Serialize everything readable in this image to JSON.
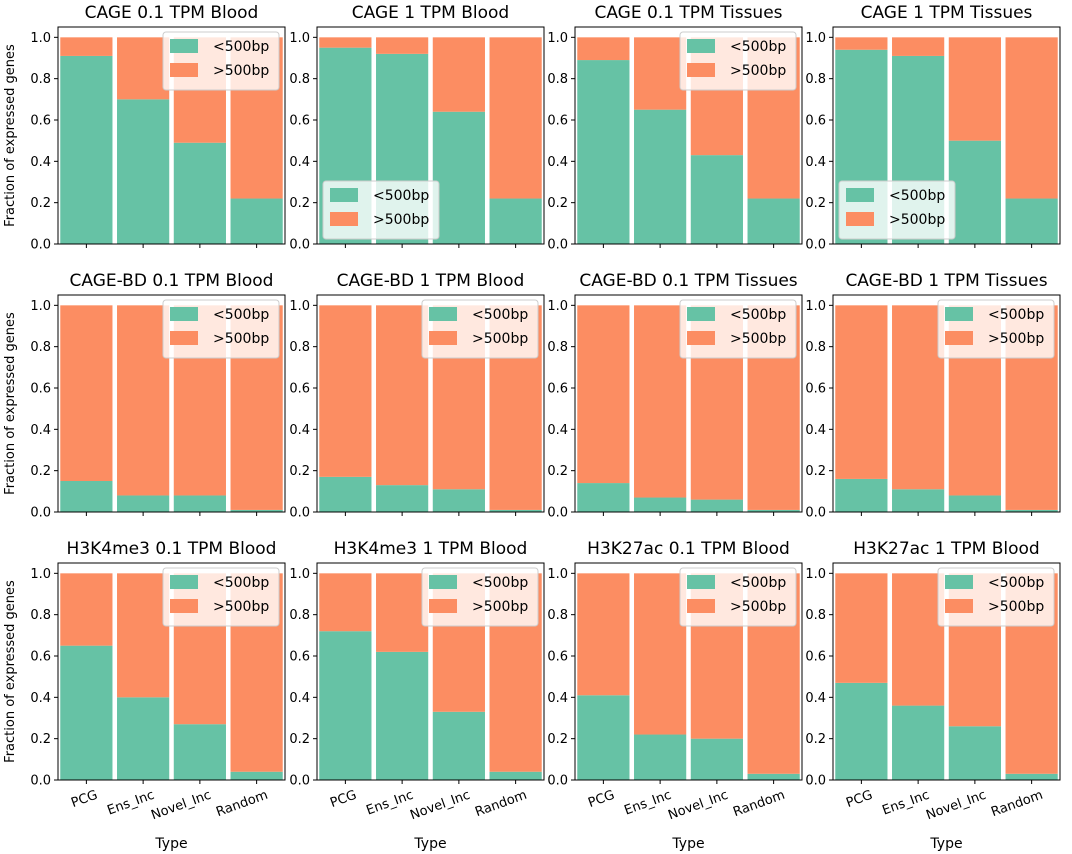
{
  "colors": {
    "short": "#66c2a5",
    "long": "#fc8d62",
    "axis": "#000000",
    "legend_edge": "#cccccc"
  },
  "figure": {
    "ylabel": "Fraction of expressed genes",
    "xlabel": "Type",
    "legend": [
      "<500bp",
      ">500bp"
    ],
    "yticks": [
      "0.0",
      "0.2",
      "0.4",
      "0.6",
      "0.8",
      "1.0"
    ]
  },
  "chart_data": [
    {
      "type": "bar",
      "title": "CAGE 0.1 TPM Blood",
      "categories": [
        "PCG",
        "Ens_Inc",
        "Novel_Inc",
        "Random"
      ],
      "series": [
        {
          "name": "<500bp",
          "values": [
            0.91,
            0.7,
            0.49,
            0.22
          ]
        },
        {
          "name": ">500bp",
          "values": [
            0.09,
            0.3,
            0.51,
            0.78
          ]
        }
      ],
      "xlabel": "",
      "ylabel": "Fraction of expressed genes",
      "ylim": [
        0,
        1.05
      ],
      "legend_position": "top-right"
    },
    {
      "type": "bar",
      "title": "CAGE 1 TPM Blood",
      "categories": [
        "PCG",
        "Ens_Inc",
        "Novel_Inc",
        "Random"
      ],
      "series": [
        {
          "name": "<500bp",
          "values": [
            0.95,
            0.92,
            0.64,
            0.22
          ]
        },
        {
          "name": ">500bp",
          "values": [
            0.05,
            0.08,
            0.36,
            0.78
          ]
        }
      ],
      "xlabel": "",
      "ylabel": "",
      "ylim": [
        0,
        1.05
      ],
      "legend_position": "bottom-left"
    },
    {
      "type": "bar",
      "title": "CAGE 0.1 TPM Tissues",
      "categories": [
        "PCG",
        "Ens_Inc",
        "Novel_Inc",
        "Random"
      ],
      "series": [
        {
          "name": "<500bp",
          "values": [
            0.89,
            0.65,
            0.43,
            0.22
          ]
        },
        {
          "name": ">500bp",
          "values": [
            0.11,
            0.35,
            0.57,
            0.78
          ]
        }
      ],
      "xlabel": "",
      "ylabel": "",
      "ylim": [
        0,
        1.05
      ],
      "legend_position": "top-right"
    },
    {
      "type": "bar",
      "title": "CAGE 1 TPM Tissues",
      "categories": [
        "PCG",
        "Ens_Inc",
        "Novel_Inc",
        "Random"
      ],
      "series": [
        {
          "name": "<500bp",
          "values": [
            0.94,
            0.91,
            0.5,
            0.22
          ]
        },
        {
          "name": ">500bp",
          "values": [
            0.06,
            0.09,
            0.5,
            0.78
          ]
        }
      ],
      "xlabel": "",
      "ylabel": "",
      "ylim": [
        0,
        1.05
      ],
      "legend_position": "bottom-left"
    },
    {
      "type": "bar",
      "title": "CAGE-BD 0.1 TPM Blood",
      "categories": [
        "PCG",
        "Ens_Inc",
        "Novel_Inc",
        "Random"
      ],
      "series": [
        {
          "name": "<500bp",
          "values": [
            0.15,
            0.08,
            0.08,
            0.01
          ]
        },
        {
          "name": ">500bp",
          "values": [
            0.85,
            0.92,
            0.92,
            0.99
          ]
        }
      ],
      "xlabel": "",
      "ylabel": "Fraction of expressed genes",
      "ylim": [
        0,
        1.05
      ],
      "legend_position": "top-right"
    },
    {
      "type": "bar",
      "title": "CAGE-BD 1 TPM Blood",
      "categories": [
        "PCG",
        "Ens_Inc",
        "Novel_Inc",
        "Random"
      ],
      "series": [
        {
          "name": "<500bp",
          "values": [
            0.17,
            0.13,
            0.11,
            0.01
          ]
        },
        {
          "name": ">500bp",
          "values": [
            0.83,
            0.87,
            0.89,
            0.99
          ]
        }
      ],
      "xlabel": "",
      "ylabel": "",
      "ylim": [
        0,
        1.05
      ],
      "legend_position": "top-right"
    },
    {
      "type": "bar",
      "title": "CAGE-BD 0.1 TPM Tissues",
      "categories": [
        "PCG",
        "Ens_Inc",
        "Novel_Inc",
        "Random"
      ],
      "series": [
        {
          "name": "<500bp",
          "values": [
            0.14,
            0.07,
            0.06,
            0.01
          ]
        },
        {
          "name": ">500bp",
          "values": [
            0.86,
            0.93,
            0.94,
            0.99
          ]
        }
      ],
      "xlabel": "",
      "ylabel": "",
      "ylim": [
        0,
        1.05
      ],
      "legend_position": "top-right"
    },
    {
      "type": "bar",
      "title": "CAGE-BD 1 TPM Tissues",
      "categories": [
        "PCG",
        "Ens_Inc",
        "Novel_Inc",
        "Random"
      ],
      "series": [
        {
          "name": "<500bp",
          "values": [
            0.16,
            0.11,
            0.08,
            0.01
          ]
        },
        {
          "name": ">500bp",
          "values": [
            0.84,
            0.89,
            0.92,
            0.99
          ]
        }
      ],
      "xlabel": "",
      "ylabel": "",
      "ylim": [
        0,
        1.05
      ],
      "legend_position": "top-right"
    },
    {
      "type": "bar",
      "title": "H3K4me3 0.1 TPM Blood",
      "categories": [
        "PCG",
        "Ens_Inc",
        "Novel_Inc",
        "Random"
      ],
      "series": [
        {
          "name": "<500bp",
          "values": [
            0.65,
            0.4,
            0.27,
            0.04
          ]
        },
        {
          "name": ">500bp",
          "values": [
            0.35,
            0.6,
            0.73,
            0.96
          ]
        }
      ],
      "xlabel": "Type",
      "ylabel": "Fraction of expressed genes",
      "ylim": [
        0,
        1.05
      ],
      "legend_position": "top-right"
    },
    {
      "type": "bar",
      "title": "H3K4me3 1 TPM Blood",
      "categories": [
        "PCG",
        "Ens_Inc",
        "Novel_Inc",
        "Random"
      ],
      "series": [
        {
          "name": "<500bp",
          "values": [
            0.72,
            0.62,
            0.33,
            0.04
          ]
        },
        {
          "name": ">500bp",
          "values": [
            0.28,
            0.38,
            0.67,
            0.96
          ]
        }
      ],
      "xlabel": "Type",
      "ylabel": "",
      "ylim": [
        0,
        1.05
      ],
      "legend_position": "top-right"
    },
    {
      "type": "bar",
      "title": "H3K27ac 0.1 TPM Blood",
      "categories": [
        "PCG",
        "Ens_Inc",
        "Novel_Inc",
        "Random"
      ],
      "series": [
        {
          "name": "<500bp",
          "values": [
            0.41,
            0.22,
            0.2,
            0.03
          ]
        },
        {
          "name": ">500bp",
          "values": [
            0.59,
            0.78,
            0.8,
            0.97
          ]
        }
      ],
      "xlabel": "Type",
      "ylabel": "",
      "ylim": [
        0,
        1.05
      ],
      "legend_position": "top-right"
    },
    {
      "type": "bar",
      "title": "H3K27ac 1 TPM Blood",
      "categories": [
        "PCG",
        "Ens_Inc",
        "Novel_Inc",
        "Random"
      ],
      "series": [
        {
          "name": "<500bp",
          "values": [
            0.47,
            0.36,
            0.26,
            0.03
          ]
        },
        {
          "name": ">500bp",
          "values": [
            0.53,
            0.64,
            0.74,
            0.97
          ]
        }
      ],
      "xlabel": "Type",
      "ylabel": "",
      "ylim": [
        0,
        1.05
      ],
      "legend_position": "top-right"
    }
  ]
}
